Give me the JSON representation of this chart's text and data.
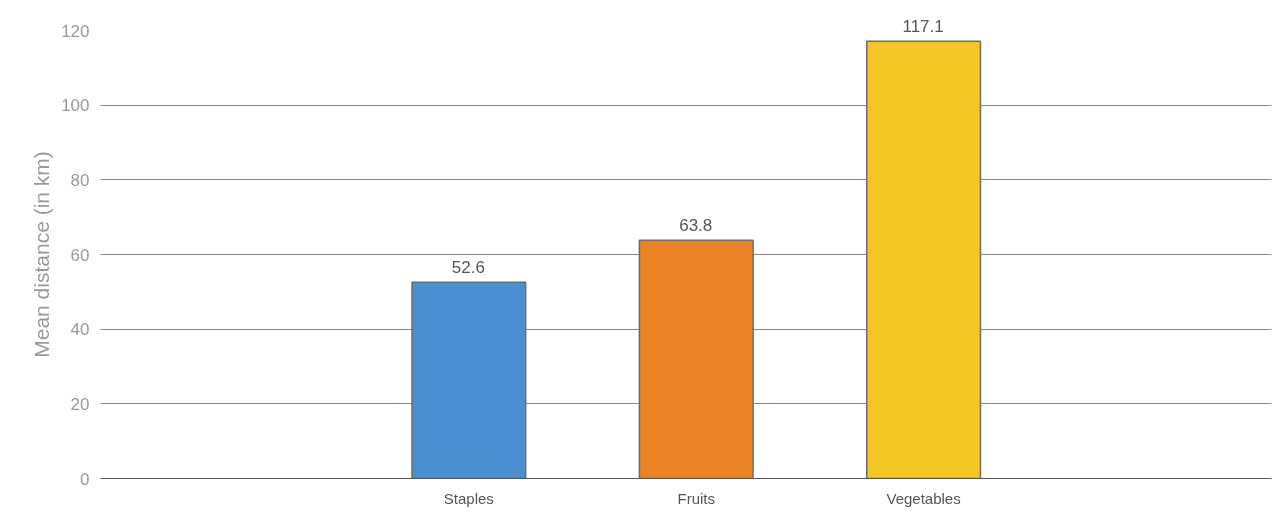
{
  "chart_data": {
    "type": "bar",
    "ylabel": "Mean distance (in km)",
    "categories": [
      "Staples",
      "Fruits",
      "Vegetables"
    ],
    "values": [
      52.6,
      63.8,
      117.1
    ],
    "colors": [
      "#4a8fcf",
      "#e98325",
      "#f4c623"
    ],
    "ylim": [
      0,
      120
    ],
    "yticks": [
      0,
      20,
      40,
      60,
      80,
      100,
      120
    ],
    "grid": "y",
    "data_labels": true
  }
}
